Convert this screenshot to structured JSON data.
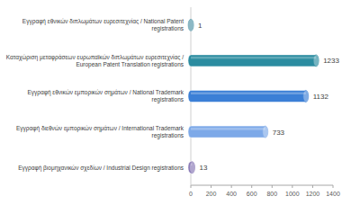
{
  "chart_data": {
    "type": "bar",
    "orientation": "horizontal",
    "categories": [
      "Εγγραφή εθνικών διπλωμάτων ευρεσιτεχνίας / National Patent registrations",
      "Καταχώριση μεταφράσεων ευρωπαϊκών διπλωμάτων ευρεσιτεχνίας / European Patent Translation registrations",
      "Εγγραφή εθνικών εμπορικών σημάτων / National Trademark registrations",
      "Εγγραφή διεθνών εμπορικών σημάτων / International Trademark registrations",
      "Εγγραφή βιομηχανικών σχεδίων / Industrial Design registrations"
    ],
    "values": [
      1,
      1233,
      1132,
      733,
      13
    ],
    "colors": [
      "#4f93a6",
      "#2b8ca0",
      "#3b7fd6",
      "#7da9e8",
      "#8676b4"
    ],
    "xlim": [
      0,
      1400
    ],
    "xticks": [
      0,
      200,
      400,
      600,
      800,
      1000,
      1200,
      1400
    ],
    "grid": false,
    "data_labels": true
  }
}
